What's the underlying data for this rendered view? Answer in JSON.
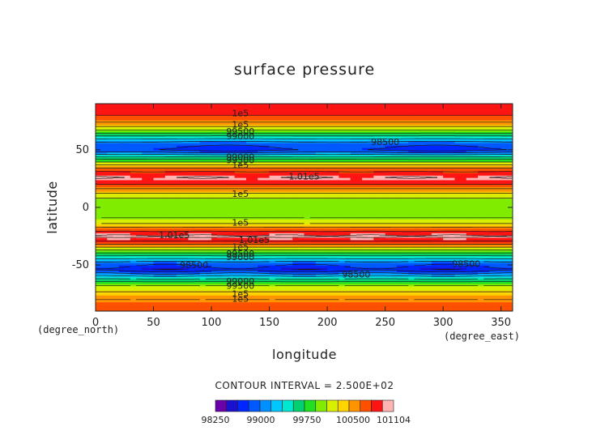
{
  "chart_data": {
    "type": "heatmap",
    "title": "surface pressure",
    "xlabel": "longitude",
    "ylabel": "latitude",
    "x_unit": "(degree_east)",
    "y_unit": "(degree_north)",
    "xlim": [
      0,
      360
    ],
    "ylim": [
      -90,
      90
    ],
    "x_ticks": [
      "0",
      "50",
      "100",
      "150",
      "200",
      "250",
      "300",
      "350"
    ],
    "x_tick_values": [
      0,
      50,
      100,
      150,
      200,
      250,
      300,
      350
    ],
    "y_ticks": [
      "50",
      "0",
      "-50"
    ],
    "y_tick_values": [
      50,
      0,
      -50
    ],
    "contour_interval_text": "CONTOUR INTERVAL = 2.500E+02",
    "colorbar": {
      "tick_labels": [
        "98250",
        "99000",
        "99750",
        "100500",
        "101104"
      ],
      "colors": [
        "#6a00a8",
        "#1a10d0",
        "#0026ff",
        "#0058ff",
        "#0090ff",
        "#00c8ff",
        "#00e8d0",
        "#00d070",
        "#20e020",
        "#80ec00",
        "#d8f000",
        "#ffd400",
        "#ff9400",
        "#ff5000",
        "#ff1414",
        "#ffb4b4"
      ],
      "levels": [
        98250,
        98500,
        98750,
        99000,
        99250,
        99500,
        99750,
        100000,
        100250,
        100500,
        100750,
        101000,
        101104
      ]
    },
    "lat_profile": [
      {
        "lat": -90,
        "value": 100650
      },
      {
        "lat": -84,
        "value": 100600
      },
      {
        "lat": -78,
        "value": 100450
      },
      {
        "lat": -72,
        "value": 100200
      },
      {
        "lat": -66,
        "value": 99900
      },
      {
        "lat": -60,
        "value": 99300
      },
      {
        "lat": -54,
        "value": 98600
      },
      {
        "lat": -48,
        "value": 98900
      },
      {
        "lat": -42,
        "value": 99500
      },
      {
        "lat": -36,
        "value": 100100
      },
      {
        "lat": -30,
        "value": 100700
      },
      {
        "lat": -25,
        "value": 101050
      },
      {
        "lat": -20,
        "value": 100700
      },
      {
        "lat": -14,
        "value": 100250
      },
      {
        "lat": -8,
        "value": 99950
      },
      {
        "lat": 0,
        "value": 99900
      },
      {
        "lat": 8,
        "value": 100000
      },
      {
        "lat": 14,
        "value": 100350
      },
      {
        "lat": 20,
        "value": 100750
      },
      {
        "lat": 26,
        "value": 101000
      },
      {
        "lat": 32,
        "value": 100700
      },
      {
        "lat": 38,
        "value": 100150
      },
      {
        "lat": 44,
        "value": 99500
      },
      {
        "lat": 50,
        "value": 98700
      },
      {
        "lat": 56,
        "value": 98900
      },
      {
        "lat": 62,
        "value": 99500
      },
      {
        "lat": 68,
        "value": 100100
      },
      {
        "lat": 74,
        "value": 100500
      },
      {
        "lat": 80,
        "value": 100750
      },
      {
        "lat": 86,
        "value": 100800
      },
      {
        "lat": 90,
        "value": 100800
      }
    ],
    "contour_labels": [
      {
        "text": "1e5",
        "lon": 125,
        "lat": 82
      },
      {
        "text": "1e5",
        "lon": 125,
        "lat": 72
      },
      {
        "text": "99500",
        "lon": 125,
        "lat": 66
      },
      {
        "text": "99000",
        "lon": 125,
        "lat": 62
      },
      {
        "text": "98500",
        "lon": 250,
        "lat": 57
      },
      {
        "text": "99000",
        "lon": 125,
        "lat": 44
      },
      {
        "text": "99500",
        "lon": 125,
        "lat": 41
      },
      {
        "text": "1e5",
        "lon": 125,
        "lat": 37
      },
      {
        "text": "1.01e5",
        "lon": 180,
        "lat": 27
      },
      {
        "text": "1e5",
        "lon": 125,
        "lat": 12
      },
      {
        "text": "1e5",
        "lon": 125,
        "lat": -13
      },
      {
        "text": "1.01e5",
        "lon": 68,
        "lat": -24
      },
      {
        "text": "1.01e5",
        "lon": 137,
        "lat": -28
      },
      {
        "text": "1e5",
        "lon": 125,
        "lat": -34
      },
      {
        "text": "99500",
        "lon": 125,
        "lat": -40
      },
      {
        "text": "99000",
        "lon": 125,
        "lat": -43
      },
      {
        "text": "98500",
        "lon": 85,
        "lat": -50
      },
      {
        "text": "98500",
        "lon": 225,
        "lat": -58
      },
      {
        "text": "98500",
        "lon": 320,
        "lat": -49
      },
      {
        "text": "99000",
        "lon": 125,
        "lat": -64
      },
      {
        "text": "99500",
        "lon": 125,
        "lat": -68
      },
      {
        "text": "1e5",
        "lon": 125,
        "lat": -75
      },
      {
        "text": "1e5",
        "lon": 125,
        "lat": -79
      }
    ]
  }
}
